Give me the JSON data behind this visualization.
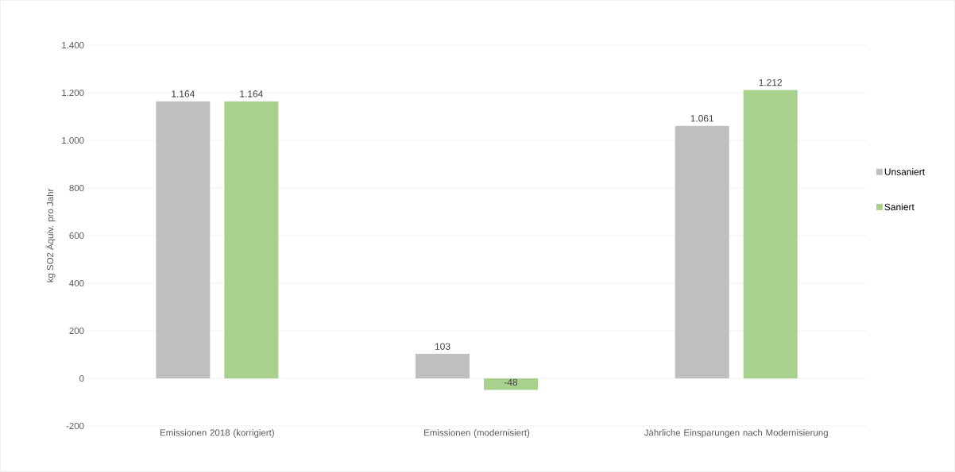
{
  "chart_data": {
    "type": "bar",
    "ylabel": "kg SO2 Äquiv. pro Jahr",
    "categories": [
      "Emissionen 2018 (korrigiert)",
      "Emissionen (modernisiert)",
      "Jährliche Einsparungen nach Modernisierung"
    ],
    "series": [
      {
        "name": "Unsaniert",
        "color": "#bfbfbf",
        "values": [
          1164,
          103,
          1061
        ],
        "value_labels": [
          "1.164",
          "103",
          "1.061"
        ]
      },
      {
        "name": "Saniert",
        "color": "#a9d18e",
        "values": [
          1164,
          -48,
          1212
        ],
        "value_labels": [
          "1.164",
          "-48",
          "1.212"
        ]
      }
    ],
    "ylim": [
      -200,
      1400
    ],
    "yticks": [
      {
        "value": -200,
        "label": "-200"
      },
      {
        "value": 0,
        "label": "0"
      },
      {
        "value": 200,
        "label": "200"
      },
      {
        "value": 400,
        "label": "400"
      },
      {
        "value": 600,
        "label": "600"
      },
      {
        "value": 800,
        "label": "800"
      },
      {
        "value": 1000,
        "label": "1.000"
      },
      {
        "value": 1200,
        "label": "1.200"
      },
      {
        "value": 1400,
        "label": "1.400"
      }
    ],
    "grid": "y",
    "legend": "right"
  }
}
